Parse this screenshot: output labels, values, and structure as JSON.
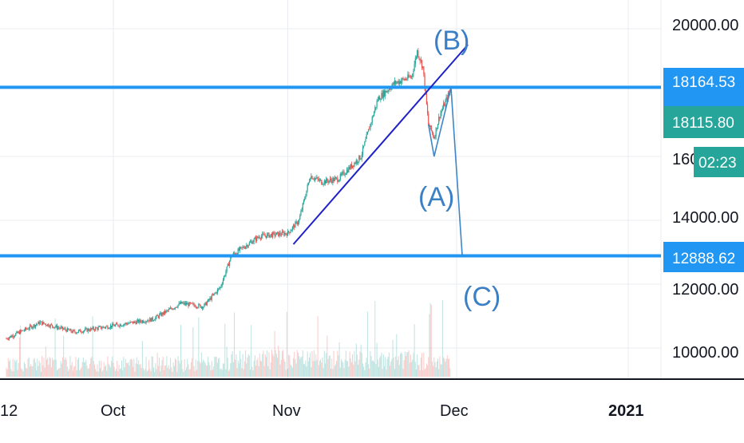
{
  "colors": {
    "up": "#26a69a",
    "down": "#ef5350",
    "level_line": "#2196f3",
    "trend_line": "#1e22c8",
    "wave_path": "#3f86c8",
    "wave_label": "#3b7fc4",
    "price_tag_blue": "#2196f3",
    "price_tag_green": "#26a69a",
    "grid": "#e9ecf1",
    "axis_line": "#131722",
    "text": "#131722"
  },
  "chart_data": {
    "type": "candlestick",
    "instrument_hint": "price chart",
    "y_axis": {
      "tick_labels": [
        "20000.00",
        "14000.00",
        "12000.00",
        "10000.00"
      ],
      "ticks": [
        20000,
        16000,
        14000,
        12000,
        10000
      ],
      "ylim": [
        9200,
        20600
      ]
    },
    "x_axis": {
      "tick_labels": [
        "12",
        "Oct",
        "Nov",
        "Dec",
        "2021"
      ]
    },
    "horizontal_levels": [
      {
        "value": 18164.53,
        "label": "18164.53",
        "tag_color": "blue"
      },
      {
        "value": 12888.62,
        "label": "12888.62",
        "tag_color": "blue"
      }
    ],
    "last_price": {
      "value": 18115.8,
      "label": "18115.80",
      "countdown": "02:23",
      "partial_tick_label": "160"
    },
    "trend_line": {
      "from": [
        "Nov 2",
        13250
      ],
      "to": [
        "Dec 3",
        19500
      ]
    },
    "wave_annotations": [
      {
        "label": "(A)",
        "near": 16000
      },
      {
        "label": "(B)",
        "near": 19500
      },
      {
        "label": "(C)",
        "near": 12000
      }
    ],
    "wave_path": [
      {
        "date": "Nov 26",
        "price": 17000
      },
      {
        "date": "Nov 27",
        "price": 16000
      },
      {
        "date": "Nov 30",
        "price": 18164
      },
      {
        "date": "Dec 2",
        "price": 12888
      }
    ],
    "price_anchors": [
      {
        "date": "Sep 12",
        "price": 10300
      },
      {
        "date": "Sep 18",
        "price": 10800
      },
      {
        "date": "Sep 24",
        "price": 10500
      },
      {
        "date": "Oct 1",
        "price": 10700
      },
      {
        "date": "Oct 8",
        "price": 10900
      },
      {
        "date": "Oct 13",
        "price": 11400
      },
      {
        "date": "Oct 17",
        "price": 11300
      },
      {
        "date": "Oct 20",
        "price": 11900
      },
      {
        "date": "Oct 22",
        "price": 12900
      },
      {
        "date": "Oct 27",
        "price": 13500
      },
      {
        "date": "Nov 1",
        "price": 13600
      },
      {
        "date": "Nov 3",
        "price": 14000
      },
      {
        "date": "Nov 5",
        "price": 15400
      },
      {
        "date": "Nov 7",
        "price": 15200
      },
      {
        "date": "Nov 10",
        "price": 15300
      },
      {
        "date": "Nov 14",
        "price": 16000
      },
      {
        "date": "Nov 17",
        "price": 17800
      },
      {
        "date": "Nov 20",
        "price": 18300
      },
      {
        "date": "Nov 23",
        "price": 18500
      },
      {
        "date": "Nov 24",
        "price": 19300
      },
      {
        "date": "Nov 25",
        "price": 18800
      },
      {
        "date": "Nov 26",
        "price": 17000
      },
      {
        "date": "Nov 27",
        "price": 16600
      },
      {
        "date": "Nov 28",
        "price": 17300
      },
      {
        "date": "Nov 30",
        "price": 18115
      }
    ]
  }
}
